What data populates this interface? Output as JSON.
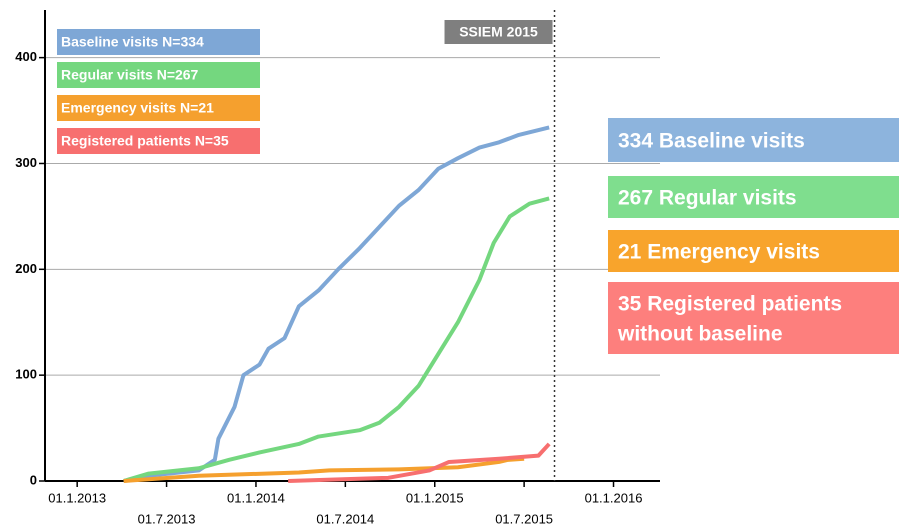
{
  "chart_data": {
    "type": "line",
    "xlim": [
      2012.82,
      2016.26
    ],
    "ylim": [
      0,
      445
    ],
    "grid": true,
    "xticks": [
      {
        "value": 2013,
        "label": "01.1.2013"
      },
      {
        "value": 2013.5,
        "label": "01.7.2013"
      },
      {
        "value": 2014,
        "label": "01.1.2014"
      },
      {
        "value": 2014.5,
        "label": "01.7.2014"
      },
      {
        "value": 2015,
        "label": "01.1.2015"
      },
      {
        "value": 2015.5,
        "label": "01.7.2015"
      },
      {
        "value": 2016,
        "label": "01.1.2016"
      }
    ],
    "yticks": [
      0,
      100,
      200,
      300,
      400
    ],
    "series": [
      {
        "name": "Baseline visits N=334",
        "color": "#7ea7d6",
        "x": [
          2013.26,
          2013.4,
          2013.68,
          2013.77,
          2013.79,
          2013.88,
          2013.93,
          2014.02,
          2014.07,
          2014.16,
          2014.24,
          2014.35,
          2014.46,
          2014.58,
          2014.69,
          2014.8,
          2014.91,
          2015.02,
          2015.13,
          2015.25,
          2015.36,
          2015.47,
          2015.64
        ],
        "values": [
          0,
          5,
          10,
          20,
          40,
          70,
          100,
          110,
          125,
          135,
          165,
          180,
          200,
          220,
          240,
          260,
          275,
          295,
          305,
          315,
          320,
          327,
          334
        ]
      },
      {
        "name": "Regular visits N=267",
        "color": "#74d77f",
        "x": [
          2013.26,
          2013.4,
          2013.68,
          2013.85,
          2014.02,
          2014.24,
          2014.35,
          2014.58,
          2014.69,
          2014.8,
          2014.91,
          2015.02,
          2015.13,
          2015.25,
          2015.33,
          2015.42,
          2015.53,
          2015.64
        ],
        "values": [
          0,
          7,
          12,
          20,
          27,
          35,
          42,
          48,
          55,
          70,
          90,
          120,
          150,
          190,
          225,
          250,
          262,
          267
        ]
      },
      {
        "name": "Emergency visits N=21",
        "color": "#f5a02e",
        "x": [
          2013.26,
          2013.68,
          2014.24,
          2014.41,
          2014.8,
          2015.13,
          2015.36,
          2015.41,
          2015.5
        ],
        "values": [
          0,
          5,
          8,
          10,
          11,
          13,
          18,
          20,
          21
        ]
      },
      {
        "name": "Registered patients N=35",
        "color": "#f76f6f",
        "x": [
          2014.18,
          2014.74,
          2014.97,
          2015.08,
          2015.36,
          2015.58,
          2015.64
        ],
        "values": [
          0,
          3,
          10,
          18,
          21,
          24,
          35
        ]
      }
    ],
    "vline": {
      "x": 2015.67,
      "label": "SSIEM 2015"
    },
    "annotations": [
      {
        "lines": [
          "334 Baseline visits"
        ],
        "color": "#8db4dd"
      },
      {
        "lines": [
          "267 Regular visits"
        ],
        "color": "#7fde8e"
      },
      {
        "lines": [
          "21 Emergency visits"
        ],
        "color": "#f8a42c"
      },
      {
        "lines": [
          "35 Registered patients",
          "without baseline"
        ],
        "color": "#fd7f7d"
      }
    ]
  }
}
